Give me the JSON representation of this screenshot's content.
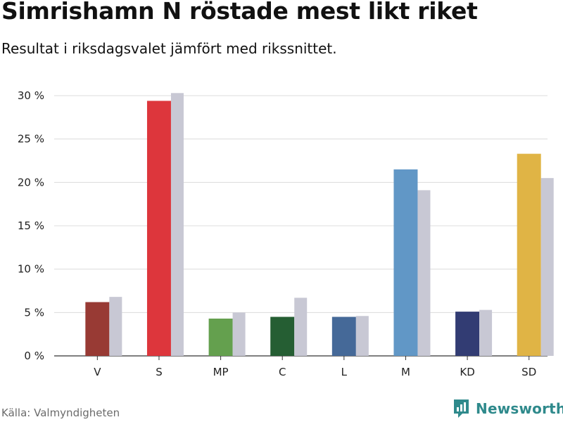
{
  "header": {
    "title": "Simrishamn N röstade mest likt riket",
    "subtitle": "Resultat i riksdagsvalet jämfört med rikssnittet."
  },
  "footer": {
    "source": "Källa: Valmyndigheten",
    "brand": "Newsworthy"
  },
  "chart_data": {
    "type": "bar",
    "categories": [
      "V",
      "S",
      "MP",
      "C",
      "L",
      "M",
      "KD",
      "SD"
    ],
    "series": [
      {
        "values": [
          6.2,
          29.4,
          4.3,
          4.5,
          4.5,
          21.5,
          5.1,
          23.3
        ]
      },
      {
        "values": [
          6.8,
          30.3,
          5.0,
          6.7,
          4.6,
          19.1,
          5.3,
          20.5
        ]
      }
    ],
    "colors": [
      "#983a34",
      "#dd363c",
      "#64a04e",
      "#255e33",
      "#456998",
      "#6197c6",
      "#323c73",
      "#e0b445"
    ],
    "reference_color": "#c8c8d4",
    "ylim": [
      0,
      30
    ],
    "yticks": [
      0,
      5,
      10,
      15,
      20,
      25,
      30
    ],
    "ytick_labels": [
      "0 %",
      "5 %",
      "10 %",
      "15 %",
      "20 %",
      "25 %",
      "30 %"
    ],
    "grid": true
  }
}
